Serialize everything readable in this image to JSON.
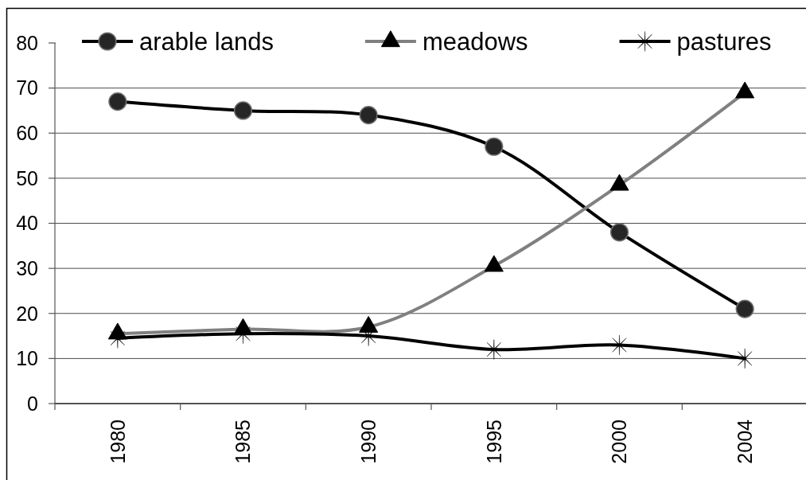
{
  "chart_data": {
    "type": "line",
    "categories": [
      "1980",
      "1985",
      "1990",
      "1995",
      "2000",
      "2004"
    ],
    "series": [
      {
        "name": "arable lands",
        "color": "#000000",
        "marker": "circle",
        "values": [
          67,
          65,
          64,
          57,
          38,
          21
        ]
      },
      {
        "name": "meadows",
        "color": "#808080",
        "marker": "triangle",
        "values": [
          15.5,
          16.5,
          17,
          30.5,
          48.5,
          69
        ]
      },
      {
        "name": "pastures",
        "color": "#000000",
        "marker": "star",
        "values": [
          14.5,
          15.5,
          15,
          12,
          13,
          10
        ]
      }
    ],
    "ylim": [
      0,
      80
    ],
    "yticks": [
      0,
      10,
      20,
      30,
      40,
      50,
      60,
      70,
      80
    ],
    "grid": "y",
    "legend": "top",
    "line_style": "solid"
  }
}
